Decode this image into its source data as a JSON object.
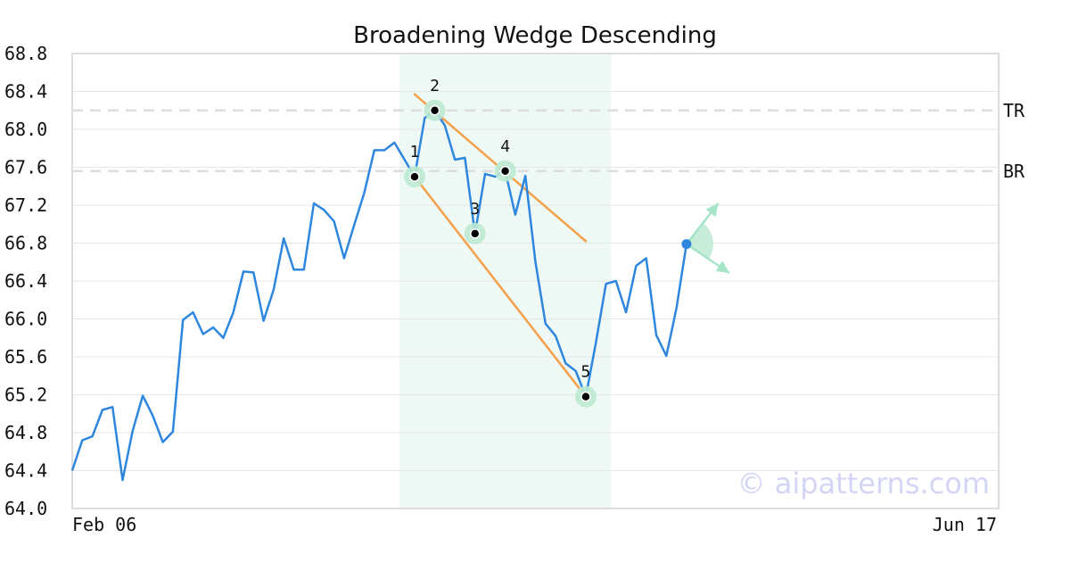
{
  "chart_data": {
    "type": "line",
    "title": "Broadening Wedge Descending",
    "watermark": "© aipatterns.com",
    "xlabel": "",
    "ylabel": "",
    "ylim": [
      64.0,
      68.8
    ],
    "yticks": [
      "64.0",
      "64.4",
      "64.8",
      "65.2",
      "65.6",
      "66.0",
      "66.4",
      "66.8",
      "67.2",
      "67.6",
      "68.0",
      "68.4",
      "68.8"
    ],
    "xtick_labels": {
      "first": "Feb 06",
      "last": "Jun 17"
    },
    "num_points": 93,
    "series": [
      {
        "color": "#2e86de",
        "values": [
          64.4,
          64.72,
          64.76,
          65.04,
          65.07,
          64.3,
          64.82,
          65.19,
          64.98,
          64.7,
          64.81,
          65.99,
          66.07,
          65.84,
          65.91,
          65.8,
          66.07,
          66.5,
          66.49,
          65.98,
          66.31,
          66.85,
          66.52,
          66.52,
          67.22,
          67.15,
          67.03,
          66.64,
          66.99,
          67.33,
          67.78,
          67.78,
          67.86,
          67.68,
          67.5,
          68.12,
          68.2,
          68.04,
          67.68,
          67.7,
          66.9,
          67.53,
          67.5,
          67.56,
          67.1,
          67.51,
          66.6,
          65.95,
          65.82,
          65.53,
          65.45,
          65.18,
          65.75,
          66.37,
          66.4,
          66.07,
          66.56,
          66.64,
          65.83,
          65.61,
          66.11,
          66.79
        ]
      }
    ],
    "pattern": {
      "shaded_range": [
        32.5,
        53.5
      ],
      "points": [
        {
          "label": "1",
          "x": 34,
          "y": 67.5
        },
        {
          "label": "2",
          "x": 36,
          "y": 68.2
        },
        {
          "label": "3",
          "x": 40,
          "y": 66.9
        },
        {
          "label": "4",
          "x": 43,
          "y": 67.56
        },
        {
          "label": "5",
          "x": 51,
          "y": 65.18
        }
      ],
      "top_line": [
        [
          34.0,
          68.37
        ],
        [
          51.0,
          66.82
        ]
      ],
      "bottom_line": [
        [
          34.0,
          67.5
        ],
        [
          51.0,
          65.18
        ]
      ],
      "levels": [
        {
          "label": "TR",
          "y": 68.2
        },
        {
          "label": "BR",
          "y": 67.56
        }
      ],
      "current_point": {
        "x": 61,
        "y": 66.79
      }
    },
    "grid": true,
    "legend": "none"
  }
}
